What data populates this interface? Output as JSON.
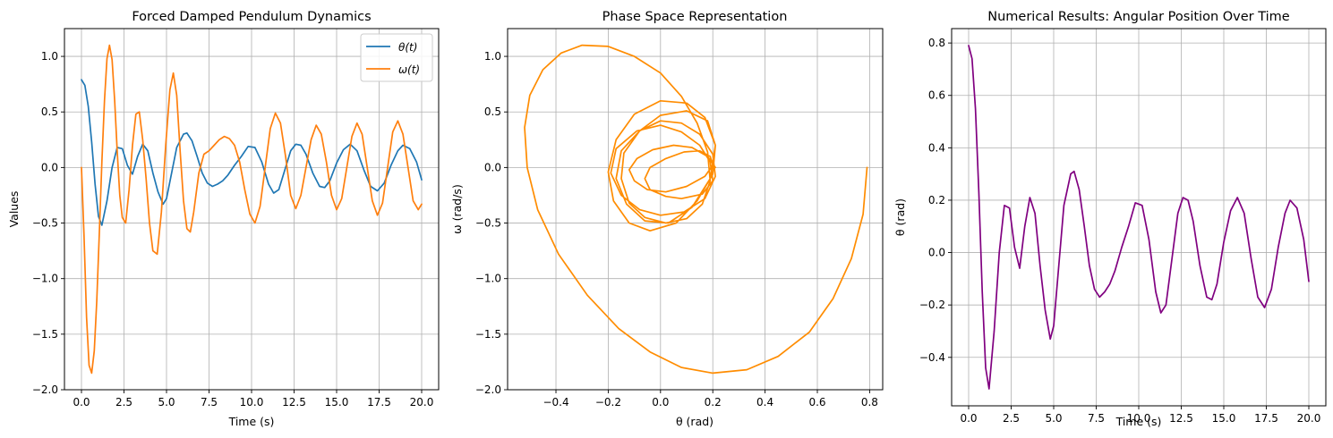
{
  "figure": {
    "background": "#ffffff"
  },
  "chart_data": [
    {
      "type": "line",
      "title": "Forced Damped Pendulum Dynamics",
      "xlabel": "Time (s)",
      "ylabel": "Values",
      "xlim": [
        -1.0,
        21.0
      ],
      "ylim": [
        -2.0,
        1.25
      ],
      "xticks": [
        0.0,
        2.5,
        5.0,
        7.5,
        10.0,
        12.5,
        15.0,
        17.5,
        20.0
      ],
      "xtick_labels": [
        "0.0",
        "2.5",
        "5.0",
        "7.5",
        "10.0",
        "12.5",
        "15.0",
        "17.5",
        "20.0"
      ],
      "yticks": [
        -2.0,
        -1.5,
        -1.0,
        -0.5,
        0.0,
        0.5,
        1.0
      ],
      "ytick_labels": [
        "−2.0",
        "−1.5",
        "−1.0",
        "−0.5",
        "0.0",
        "0.5",
        "1.0"
      ],
      "grid": true,
      "legend": "top-right",
      "series": [
        {
          "name": "θ(t)",
          "color": "#1f77b4",
          "x": [
            0,
            0.2,
            0.4,
            0.6,
            0.8,
            1.0,
            1.2,
            1.5,
            1.8,
            2.1,
            2.4,
            2.7,
            3.0,
            3.3,
            3.6,
            3.9,
            4.2,
            4.5,
            4.8,
            5.0,
            5.3,
            5.6,
            6.0,
            6.2,
            6.5,
            6.8,
            7.1,
            7.4,
            7.7,
            8.0,
            8.3,
            8.6,
            9.0,
            9.4,
            9.8,
            10.2,
            10.6,
            11.0,
            11.3,
            11.6,
            12.0,
            12.3,
            12.6,
            12.9,
            13.2,
            13.6,
            14.0,
            14.3,
            14.6,
            15.0,
            15.4,
            15.8,
            16.2,
            16.6,
            17.0,
            17.4,
            17.8,
            18.2,
            18.6,
            18.9,
            19.3,
            19.7,
            20.0
          ],
          "y": [
            0.79,
            0.74,
            0.55,
            0.23,
            -0.15,
            -0.44,
            -0.52,
            -0.3,
            0.0,
            0.18,
            0.17,
            0.02,
            -0.06,
            0.1,
            0.21,
            0.15,
            -0.05,
            -0.22,
            -0.33,
            -0.28,
            -0.05,
            0.18,
            0.3,
            0.31,
            0.24,
            0.1,
            -0.05,
            -0.14,
            -0.17,
            -0.15,
            -0.12,
            -0.07,
            0.02,
            0.1,
            0.19,
            0.18,
            0.05,
            -0.15,
            -0.23,
            -0.2,
            0.0,
            0.15,
            0.21,
            0.2,
            0.12,
            -0.05,
            -0.17,
            -0.18,
            -0.12,
            0.04,
            0.16,
            0.21,
            0.15,
            -0.02,
            -0.17,
            -0.21,
            -0.14,
            0.02,
            0.15,
            0.2,
            0.17,
            0.05,
            -0.11
          ]
        },
        {
          "name": "ω(t)",
          "color": "#ff7f0e",
          "x": [
            0,
            0.15,
            0.3,
            0.45,
            0.6,
            0.75,
            0.9,
            1.05,
            1.2,
            1.35,
            1.5,
            1.65,
            1.8,
            1.95,
            2.1,
            2.25,
            2.4,
            2.6,
            2.8,
            3.0,
            3.2,
            3.4,
            3.6,
            3.8,
            4.0,
            4.2,
            4.45,
            4.7,
            4.95,
            5.2,
            5.4,
            5.6,
            5.8,
            6.0,
            6.2,
            6.4,
            6.6,
            6.9,
            7.2,
            7.5,
            7.8,
            8.1,
            8.4,
            8.7,
            9.0,
            9.3,
            9.6,
            9.9,
            10.2,
            10.5,
            10.8,
            11.1,
            11.4,
            11.7,
            12.0,
            12.3,
            12.6,
            12.9,
            13.2,
            13.5,
            13.8,
            14.1,
            14.4,
            14.7,
            15.0,
            15.3,
            15.6,
            15.9,
            16.2,
            16.5,
            16.8,
            17.1,
            17.4,
            17.7,
            18.0,
            18.3,
            18.6,
            18.9,
            19.2,
            19.5,
            19.8,
            20.0
          ],
          "y": [
            0.0,
            -0.6,
            -1.35,
            -1.78,
            -1.85,
            -1.65,
            -1.2,
            -0.6,
            0.05,
            0.6,
            0.98,
            1.1,
            0.97,
            0.6,
            0.15,
            -0.25,
            -0.45,
            -0.5,
            -0.2,
            0.2,
            0.48,
            0.5,
            0.25,
            -0.1,
            -0.5,
            -0.75,
            -0.78,
            -0.4,
            0.2,
            0.7,
            0.85,
            0.65,
            0.15,
            -0.3,
            -0.55,
            -0.58,
            -0.4,
            -0.05,
            0.12,
            0.15,
            0.2,
            0.25,
            0.28,
            0.26,
            0.2,
            0.05,
            -0.2,
            -0.42,
            -0.5,
            -0.35,
            0.0,
            0.35,
            0.49,
            0.4,
            0.1,
            -0.25,
            -0.37,
            -0.25,
            0.0,
            0.25,
            0.38,
            0.3,
            0.05,
            -0.25,
            -0.38,
            -0.28,
            0.0,
            0.28,
            0.4,
            0.3,
            0.0,
            -0.3,
            -0.43,
            -0.32,
            0.0,
            0.32,
            0.42,
            0.3,
            0.0,
            -0.3,
            -0.38,
            -0.33
          ]
        }
      ]
    },
    {
      "type": "line",
      "title": "Phase Space Representation",
      "xlabel": "θ (rad)",
      "ylabel": "ω (rad/s)",
      "xlim": [
        -0.585,
        0.85
      ],
      "ylim": [
        -2.0,
        1.25
      ],
      "xticks": [
        -0.4,
        -0.2,
        0.0,
        0.2,
        0.4,
        0.6,
        0.8
      ],
      "xtick_labels": [
        "−0.4",
        "−0.2",
        "0.0",
        "0.2",
        "0.4",
        "0.6",
        "0.8"
      ],
      "yticks": [
        -2.0,
        -1.5,
        -1.0,
        -0.5,
        0.0,
        0.5,
        1.0
      ],
      "ytick_labels": [
        "−2.0",
        "−1.5",
        "−1.0",
        "−0.5",
        "0.0",
        "0.5",
        "1.0"
      ],
      "grid": true,
      "series": [
        {
          "color": "#ff8c00",
          "x": [
            0.79,
            0.775,
            0.73,
            0.66,
            0.57,
            0.45,
            0.33,
            0.2,
            0.08,
            -0.04,
            -0.16,
            -0.28,
            -0.39,
            -0.47,
            -0.51,
            -0.52,
            -0.5,
            -0.45,
            -0.38,
            -0.3,
            -0.2,
            -0.1,
            0.0,
            0.08,
            0.14,
            0.18,
            0.19,
            0.16,
            0.1,
            0.02,
            -0.06,
            -0.12,
            -0.15,
            -0.14,
            -0.08,
            0.0,
            0.1,
            0.18,
            0.21,
            0.2,
            0.14,
            0.06,
            -0.04,
            -0.12,
            -0.18,
            -0.2,
            -0.17,
            -0.1,
            0.0,
            0.1,
            0.17,
            0.21,
            0.19,
            0.12,
            0.03,
            -0.06,
            -0.13,
            -0.17,
            -0.15,
            -0.08,
            0.0,
            0.08,
            0.15,
            0.2,
            0.21,
            0.17,
            0.09,
            0.0,
            -0.08,
            -0.15,
            -0.19,
            -0.17,
            -0.09,
            0.0,
            0.08,
            0.15,
            0.19,
            0.2,
            0.16,
            0.08,
            0.02,
            -0.04,
            -0.06,
            -0.04,
            0.02,
            0.09,
            0.15,
            0.19,
            0.2,
            0.17,
            0.1,
            0.02,
            -0.05,
            -0.1,
            -0.12,
            -0.09,
            -0.03,
            0.05,
            0.12,
            0.18,
            0.21
          ],
          "y": [
            0.0,
            -0.42,
            -0.82,
            -1.18,
            -1.48,
            -1.7,
            -1.82,
            -1.85,
            -1.8,
            -1.66,
            -1.45,
            -1.15,
            -0.78,
            -0.38,
            0.0,
            0.36,
            0.65,
            0.88,
            1.03,
            1.1,
            1.09,
            1.0,
            0.85,
            0.64,
            0.4,
            0.14,
            -0.12,
            -0.33,
            -0.46,
            -0.5,
            -0.45,
            -0.32,
            -0.1,
            0.13,
            0.33,
            0.47,
            0.51,
            0.42,
            0.2,
            -0.06,
            -0.3,
            -0.5,
            -0.57,
            -0.5,
            -0.3,
            -0.04,
            0.25,
            0.48,
            0.6,
            0.58,
            0.45,
            0.2,
            -0.1,
            -0.36,
            -0.5,
            -0.48,
            -0.33,
            -0.1,
            0.15,
            0.33,
            0.42,
            0.4,
            0.3,
            0.12,
            -0.08,
            -0.28,
            -0.4,
            -0.43,
            -0.38,
            -0.25,
            -0.05,
            0.17,
            0.33,
            0.38,
            0.32,
            0.2,
            0.05,
            -0.12,
            -0.24,
            -0.28,
            -0.26,
            -0.2,
            -0.1,
            0.0,
            0.08,
            0.14,
            0.15,
            0.1,
            0.02,
            -0.08,
            -0.17,
            -0.22,
            -0.2,
            -0.12,
            -0.02,
            0.08,
            0.16,
            0.2,
            0.18,
            0.1,
            0.0
          ]
        }
      ]
    },
    {
      "type": "line",
      "title": "Numerical Results: Angular Position Over Time",
      "xlabel": "Time (s)",
      "ylabel": "θ (rad)",
      "xlim": [
        -1.0,
        21.0
      ],
      "ylim": [
        -0.585,
        0.855
      ],
      "xticks": [
        0.0,
        2.5,
        5.0,
        7.5,
        10.0,
        12.5,
        15.0,
        17.5,
        20.0
      ],
      "xtick_labels": [
        "0.0",
        "2.5",
        "5.0",
        "7.5",
        "10.0",
        "12.5",
        "15.0",
        "17.5",
        "20.0"
      ],
      "yticks": [
        -0.4,
        -0.2,
        0.0,
        0.2,
        0.4,
        0.6,
        0.8
      ],
      "ytick_labels": [
        "−0.4",
        "−0.2",
        "0.0",
        "0.2",
        "0.4",
        "0.6",
        "0.8"
      ],
      "grid": true,
      "series": [
        {
          "color": "#800080",
          "x": [
            0,
            0.2,
            0.4,
            0.6,
            0.8,
            1.0,
            1.2,
            1.5,
            1.8,
            2.1,
            2.4,
            2.7,
            3.0,
            3.3,
            3.6,
            3.9,
            4.2,
            4.5,
            4.8,
            5.0,
            5.3,
            5.6,
            6.0,
            6.2,
            6.5,
            6.8,
            7.1,
            7.4,
            7.7,
            8.0,
            8.3,
            8.6,
            9.0,
            9.4,
            9.8,
            10.2,
            10.6,
            11.0,
            11.3,
            11.6,
            12.0,
            12.3,
            12.6,
            12.9,
            13.2,
            13.6,
            14.0,
            14.3,
            14.6,
            15.0,
            15.4,
            15.8,
            16.2,
            16.6,
            17.0,
            17.4,
            17.8,
            18.2,
            18.6,
            18.9,
            19.3,
            19.7,
            20.0
          ],
          "y": [
            0.79,
            0.74,
            0.55,
            0.23,
            -0.15,
            -0.44,
            -0.52,
            -0.3,
            0.0,
            0.18,
            0.17,
            0.02,
            -0.06,
            0.1,
            0.21,
            0.15,
            -0.05,
            -0.22,
            -0.33,
            -0.28,
            -0.05,
            0.18,
            0.3,
            0.31,
            0.24,
            0.1,
            -0.05,
            -0.14,
            -0.17,
            -0.15,
            -0.12,
            -0.07,
            0.02,
            0.1,
            0.19,
            0.18,
            0.05,
            -0.15,
            -0.23,
            -0.2,
            0.0,
            0.15,
            0.21,
            0.2,
            0.12,
            -0.05,
            -0.17,
            -0.18,
            -0.12,
            0.04,
            0.16,
            0.21,
            0.15,
            -0.02,
            -0.17,
            -0.21,
            -0.14,
            0.02,
            0.15,
            0.2,
            0.17,
            0.05,
            -0.11
          ]
        }
      ]
    }
  ]
}
